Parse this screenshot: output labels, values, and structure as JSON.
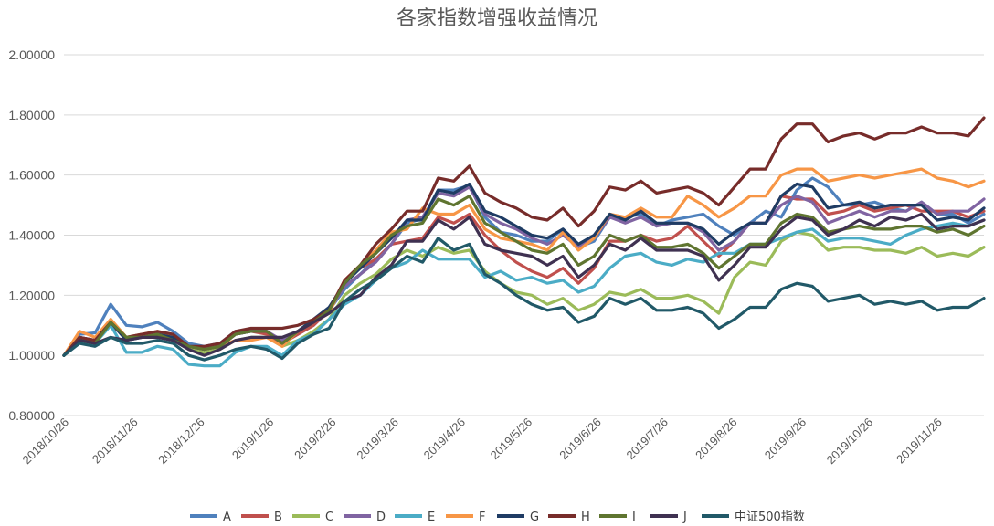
{
  "chart_data": {
    "type": "line",
    "title": "各家指数增强收益情况",
    "xlabel": "",
    "ylabel": "",
    "ylim": [
      0.8,
      2.0
    ],
    "yticks": [
      "0.80000",
      "1.00000",
      "1.20000",
      "1.40000",
      "1.60000",
      "1.80000",
      "2.00000"
    ],
    "ytick_values": [
      0.8,
      1.0,
      1.2,
      1.4,
      1.6,
      1.8,
      2.0
    ],
    "xticks": [
      "2018/10/26",
      "2018/11/26",
      "2018/12/26",
      "2019/1/26",
      "2019/2/26",
      "2019/3/26",
      "2019/4/26",
      "2019/5/26",
      "2019/6/26",
      "2019/7/26",
      "2019/8/26",
      "2019/9/26",
      "2019/10/26",
      "2019/11/26"
    ],
    "xtick_positions": [
      0,
      4.43,
      8.71,
      13.14,
      17.14,
      21.14,
      25.43,
      29.71,
      34.14,
      38.43,
      42.86,
      47.29,
      51.57,
      56.0
    ],
    "grid": true,
    "legend_position": "bottom",
    "colors": {
      "A": "#4f81bd",
      "B": "#c0504d",
      "C": "#9bbb59",
      "D": "#8064a2",
      "E": "#4bacc6",
      "F": "#f79646",
      "G": "#1f3c64",
      "H": "#772c2a",
      "I": "#5f7530",
      "J": "#3f3151",
      "中证500指数": "#215968"
    },
    "series": [
      {
        "name": "A",
        "values": [
          1.0,
          1.07,
          1.075,
          1.17,
          1.1,
          1.095,
          1.11,
          1.08,
          1.04,
          1.03,
          1.04,
          1.08,
          1.08,
          1.08,
          1.04,
          1.07,
          1.1,
          1.15,
          1.22,
          1.27,
          1.32,
          1.37,
          1.44,
          1.455,
          1.55,
          1.55,
          1.565,
          1.46,
          1.41,
          1.4,
          1.38,
          1.38,
          1.42,
          1.36,
          1.38,
          1.46,
          1.46,
          1.47,
          1.43,
          1.45,
          1.46,
          1.47,
          1.43,
          1.4,
          1.44,
          1.48,
          1.46,
          1.55,
          1.59,
          1.56,
          1.5,
          1.5,
          1.51,
          1.49,
          1.48,
          1.51,
          1.47,
          1.47,
          1.44,
          1.47
        ]
      },
      {
        "name": "B",
        "values": [
          1.0,
          1.06,
          1.05,
          1.1,
          1.06,
          1.06,
          1.07,
          1.06,
          1.03,
          1.02,
          1.03,
          1.07,
          1.08,
          1.07,
          1.04,
          1.07,
          1.1,
          1.15,
          1.25,
          1.29,
          1.32,
          1.37,
          1.38,
          1.39,
          1.46,
          1.44,
          1.47,
          1.4,
          1.35,
          1.31,
          1.28,
          1.26,
          1.29,
          1.24,
          1.29,
          1.38,
          1.38,
          1.4,
          1.38,
          1.39,
          1.43,
          1.38,
          1.33,
          1.38,
          1.44,
          1.44,
          1.53,
          1.52,
          1.52,
          1.47,
          1.48,
          1.5,
          1.48,
          1.49,
          1.5,
          1.48,
          1.48,
          1.48,
          1.46,
          1.48
        ]
      },
      {
        "name": "C",
        "values": [
          1.0,
          1.05,
          1.04,
          1.12,
          1.06,
          1.06,
          1.07,
          1.06,
          1.02,
          1.01,
          1.02,
          1.05,
          1.06,
          1.06,
          1.03,
          1.05,
          1.08,
          1.12,
          1.2,
          1.24,
          1.27,
          1.32,
          1.35,
          1.33,
          1.36,
          1.34,
          1.35,
          1.28,
          1.24,
          1.21,
          1.2,
          1.17,
          1.19,
          1.15,
          1.17,
          1.21,
          1.2,
          1.22,
          1.19,
          1.19,
          1.2,
          1.18,
          1.14,
          1.26,
          1.31,
          1.3,
          1.38,
          1.41,
          1.4,
          1.35,
          1.36,
          1.36,
          1.35,
          1.35,
          1.34,
          1.36,
          1.33,
          1.34,
          1.33,
          1.36
        ]
      },
      {
        "name": "D",
        "values": [
          1.0,
          1.06,
          1.05,
          1.11,
          1.06,
          1.07,
          1.07,
          1.06,
          1.03,
          1.02,
          1.03,
          1.07,
          1.08,
          1.08,
          1.05,
          1.08,
          1.11,
          1.15,
          1.23,
          1.27,
          1.31,
          1.37,
          1.45,
          1.46,
          1.54,
          1.53,
          1.56,
          1.47,
          1.44,
          1.42,
          1.39,
          1.37,
          1.4,
          1.36,
          1.39,
          1.46,
          1.44,
          1.46,
          1.43,
          1.44,
          1.44,
          1.41,
          1.35,
          1.38,
          1.44,
          1.44,
          1.5,
          1.53,
          1.51,
          1.44,
          1.46,
          1.48,
          1.46,
          1.48,
          1.48,
          1.51,
          1.47,
          1.48,
          1.48,
          1.52
        ]
      },
      {
        "name": "E",
        "values": [
          1.0,
          1.05,
          1.04,
          1.1,
          1.01,
          1.01,
          1.03,
          1.02,
          0.97,
          0.965,
          0.965,
          1.01,
          1.03,
          1.03,
          1.0,
          1.05,
          1.07,
          1.12,
          1.17,
          1.2,
          1.25,
          1.29,
          1.31,
          1.35,
          1.32,
          1.32,
          1.32,
          1.26,
          1.28,
          1.25,
          1.26,
          1.24,
          1.25,
          1.21,
          1.23,
          1.29,
          1.33,
          1.34,
          1.31,
          1.3,
          1.32,
          1.31,
          1.34,
          1.34,
          1.37,
          1.37,
          1.39,
          1.41,
          1.42,
          1.38,
          1.39,
          1.39,
          1.38,
          1.37,
          1.4,
          1.42,
          1.43,
          1.44,
          1.43,
          1.45
        ]
      },
      {
        "name": "F",
        "values": [
          1.0,
          1.08,
          1.06,
          1.12,
          1.06,
          1.07,
          1.08,
          1.06,
          1.03,
          1.02,
          1.03,
          1.05,
          1.05,
          1.06,
          1.03,
          1.08,
          1.11,
          1.14,
          1.25,
          1.3,
          1.35,
          1.41,
          1.42,
          1.49,
          1.47,
          1.47,
          1.5,
          1.42,
          1.39,
          1.38,
          1.37,
          1.35,
          1.41,
          1.35,
          1.39,
          1.47,
          1.46,
          1.49,
          1.46,
          1.46,
          1.53,
          1.5,
          1.46,
          1.49,
          1.53,
          1.53,
          1.6,
          1.62,
          1.62,
          1.58,
          1.59,
          1.6,
          1.59,
          1.6,
          1.61,
          1.62,
          1.59,
          1.58,
          1.56,
          1.58
        ]
      },
      {
        "name": "G",
        "values": [
          1.0,
          1.06,
          1.05,
          1.11,
          1.05,
          1.06,
          1.07,
          1.06,
          1.03,
          1.02,
          1.03,
          1.07,
          1.08,
          1.08,
          1.04,
          1.08,
          1.12,
          1.16,
          1.24,
          1.29,
          1.34,
          1.39,
          1.45,
          1.45,
          1.55,
          1.54,
          1.57,
          1.48,
          1.46,
          1.43,
          1.4,
          1.39,
          1.42,
          1.37,
          1.4,
          1.47,
          1.45,
          1.48,
          1.44,
          1.44,
          1.44,
          1.42,
          1.37,
          1.41,
          1.44,
          1.44,
          1.53,
          1.57,
          1.56,
          1.49,
          1.5,
          1.51,
          1.49,
          1.5,
          1.5,
          1.5,
          1.45,
          1.46,
          1.45,
          1.49
        ]
      },
      {
        "name": "H",
        "values": [
          1.0,
          1.06,
          1.05,
          1.11,
          1.06,
          1.07,
          1.08,
          1.07,
          1.03,
          1.03,
          1.04,
          1.08,
          1.09,
          1.09,
          1.09,
          1.1,
          1.12,
          1.15,
          1.25,
          1.3,
          1.37,
          1.42,
          1.48,
          1.48,
          1.59,
          1.58,
          1.63,
          1.54,
          1.51,
          1.49,
          1.46,
          1.45,
          1.49,
          1.43,
          1.48,
          1.56,
          1.55,
          1.58,
          1.54,
          1.55,
          1.56,
          1.54,
          1.5,
          1.56,
          1.62,
          1.62,
          1.72,
          1.77,
          1.77,
          1.71,
          1.73,
          1.74,
          1.72,
          1.74,
          1.74,
          1.76,
          1.74,
          1.74,
          1.73,
          1.79
        ]
      },
      {
        "name": "I",
        "values": [
          1.0,
          1.05,
          1.04,
          1.11,
          1.06,
          1.06,
          1.07,
          1.05,
          1.03,
          1.02,
          1.03,
          1.07,
          1.08,
          1.08,
          1.04,
          1.08,
          1.11,
          1.15,
          1.24,
          1.3,
          1.34,
          1.4,
          1.43,
          1.44,
          1.52,
          1.5,
          1.53,
          1.44,
          1.41,
          1.38,
          1.35,
          1.34,
          1.37,
          1.3,
          1.33,
          1.4,
          1.38,
          1.4,
          1.36,
          1.36,
          1.37,
          1.34,
          1.29,
          1.33,
          1.37,
          1.37,
          1.44,
          1.47,
          1.46,
          1.41,
          1.42,
          1.43,
          1.42,
          1.42,
          1.43,
          1.43,
          1.41,
          1.42,
          1.4,
          1.43
        ]
      },
      {
        "name": "J",
        "values": [
          1.0,
          1.05,
          1.04,
          1.06,
          1.05,
          1.06,
          1.06,
          1.05,
          1.02,
          1.0,
          1.02,
          1.05,
          1.06,
          1.06,
          1.06,
          1.08,
          1.11,
          1.14,
          1.18,
          1.2,
          1.26,
          1.3,
          1.38,
          1.38,
          1.45,
          1.42,
          1.46,
          1.37,
          1.35,
          1.34,
          1.33,
          1.3,
          1.33,
          1.26,
          1.3,
          1.37,
          1.35,
          1.39,
          1.35,
          1.35,
          1.35,
          1.33,
          1.25,
          1.3,
          1.36,
          1.36,
          1.42,
          1.46,
          1.45,
          1.4,
          1.42,
          1.45,
          1.43,
          1.46,
          1.45,
          1.47,
          1.42,
          1.43,
          1.43,
          1.45
        ]
      },
      {
        "name": "中证500指数",
        "values": [
          1.0,
          1.04,
          1.03,
          1.06,
          1.04,
          1.04,
          1.05,
          1.04,
          1.0,
          0.985,
          1.0,
          1.02,
          1.03,
          1.02,
          0.99,
          1.04,
          1.07,
          1.09,
          1.18,
          1.22,
          1.25,
          1.29,
          1.33,
          1.31,
          1.39,
          1.35,
          1.37,
          1.27,
          1.24,
          1.2,
          1.17,
          1.15,
          1.16,
          1.11,
          1.13,
          1.19,
          1.17,
          1.19,
          1.15,
          1.15,
          1.16,
          1.14,
          1.09,
          1.12,
          1.16,
          1.16,
          1.22,
          1.24,
          1.23,
          1.18,
          1.19,
          1.2,
          1.17,
          1.18,
          1.17,
          1.18,
          1.15,
          1.16,
          1.16,
          1.19
        ]
      }
    ]
  }
}
